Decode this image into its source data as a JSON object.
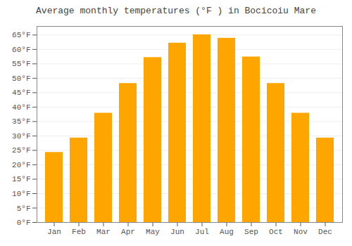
{
  "chart_data": {
    "type": "bar",
    "title": "Average monthly temperatures (°F ) in Bocicoiu Mare",
    "categories": [
      "Jan",
      "Feb",
      "Mar",
      "Apr",
      "May",
      "Jun",
      "Jul",
      "Aug",
      "Sep",
      "Oct",
      "Nov",
      "Dec"
    ],
    "values": [
      24.3,
      29.3,
      37.9,
      48.2,
      57.2,
      62.2,
      65.1,
      63.9,
      57.4,
      48.2,
      37.9,
      29.3
    ],
    "color": "#FFA500",
    "ylim": [
      0,
      68
    ],
    "yticks": [
      {
        "value": 0,
        "label": "0°F"
      },
      {
        "value": 5,
        "label": "5°F"
      },
      {
        "value": 10,
        "label": "10°F"
      },
      {
        "value": 15,
        "label": "15°F"
      },
      {
        "value": 20,
        "label": "20°F"
      },
      {
        "value": 25,
        "label": "25°F"
      },
      {
        "value": 30,
        "label": "30°F"
      },
      {
        "value": 35,
        "label": "35°F"
      },
      {
        "value": 40,
        "label": "40°F"
      },
      {
        "value": 45,
        "label": "45°F"
      },
      {
        "value": 50,
        "label": "50°F"
      },
      {
        "value": 55,
        "label": "55°F"
      },
      {
        "value": 60,
        "label": "60°F"
      },
      {
        "value": 65,
        "label": "65°F"
      }
    ],
    "grid": true
  }
}
